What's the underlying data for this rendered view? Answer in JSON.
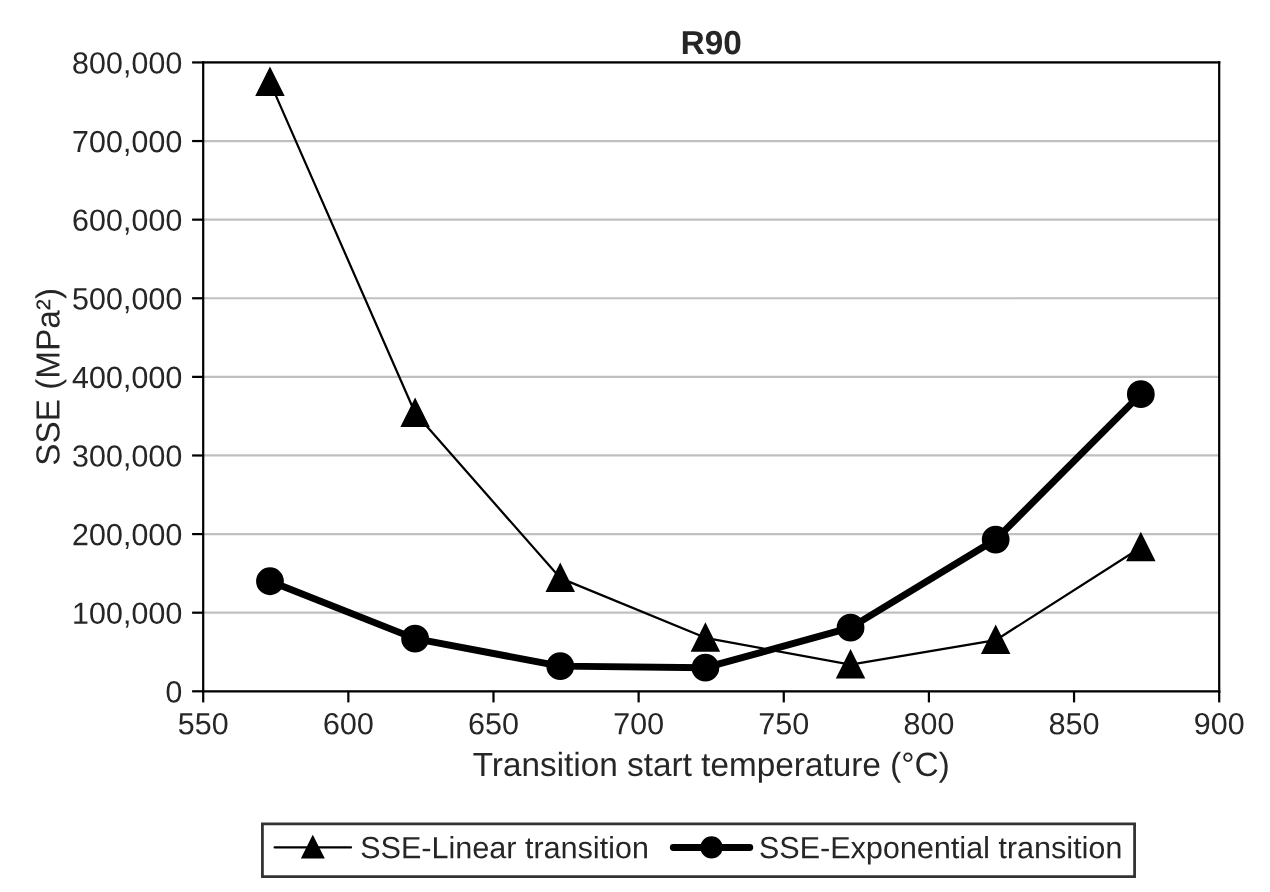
{
  "chart_data": {
    "type": "line",
    "title": "R90",
    "xlabel": "Transition start temperature (°C)",
    "ylabel": "SSE (MPa²)",
    "x": [
      573,
      623,
      673,
      723,
      773,
      823,
      873
    ],
    "series": [
      {
        "name": "SSE-Linear transition",
        "color": "#000000",
        "marker": "triangle",
        "values": [
          775000,
          354000,
          144000,
          68000,
          34000,
          65000,
          183000
        ]
      },
      {
        "name": "SSE-Exponential transition",
        "color": "#000000",
        "marker": "circle",
        "values": [
          140000,
          67000,
          32000,
          30000,
          81000,
          193000,
          378000
        ]
      }
    ],
    "xlim": [
      550,
      900
    ],
    "xticks": [
      550,
      600,
      650,
      700,
      750,
      800,
      850,
      900
    ],
    "ylim": [
      0,
      800000
    ],
    "yticks": [
      {
        "value": 0,
        "label": "0"
      },
      {
        "value": 100000,
        "label": "100,000"
      },
      {
        "value": 200000,
        "label": "200,000"
      },
      {
        "value": 300000,
        "label": "300,000"
      },
      {
        "value": 400000,
        "label": "400,000"
      },
      {
        "value": 500000,
        "label": "500,000"
      },
      {
        "value": 600000,
        "label": "600,000"
      },
      {
        "value": 700000,
        "label": "700,000"
      },
      {
        "value": 800000,
        "label": "800,000"
      }
    ],
    "grid": "y",
    "legend": "bottom",
    "line_style": "solid"
  }
}
